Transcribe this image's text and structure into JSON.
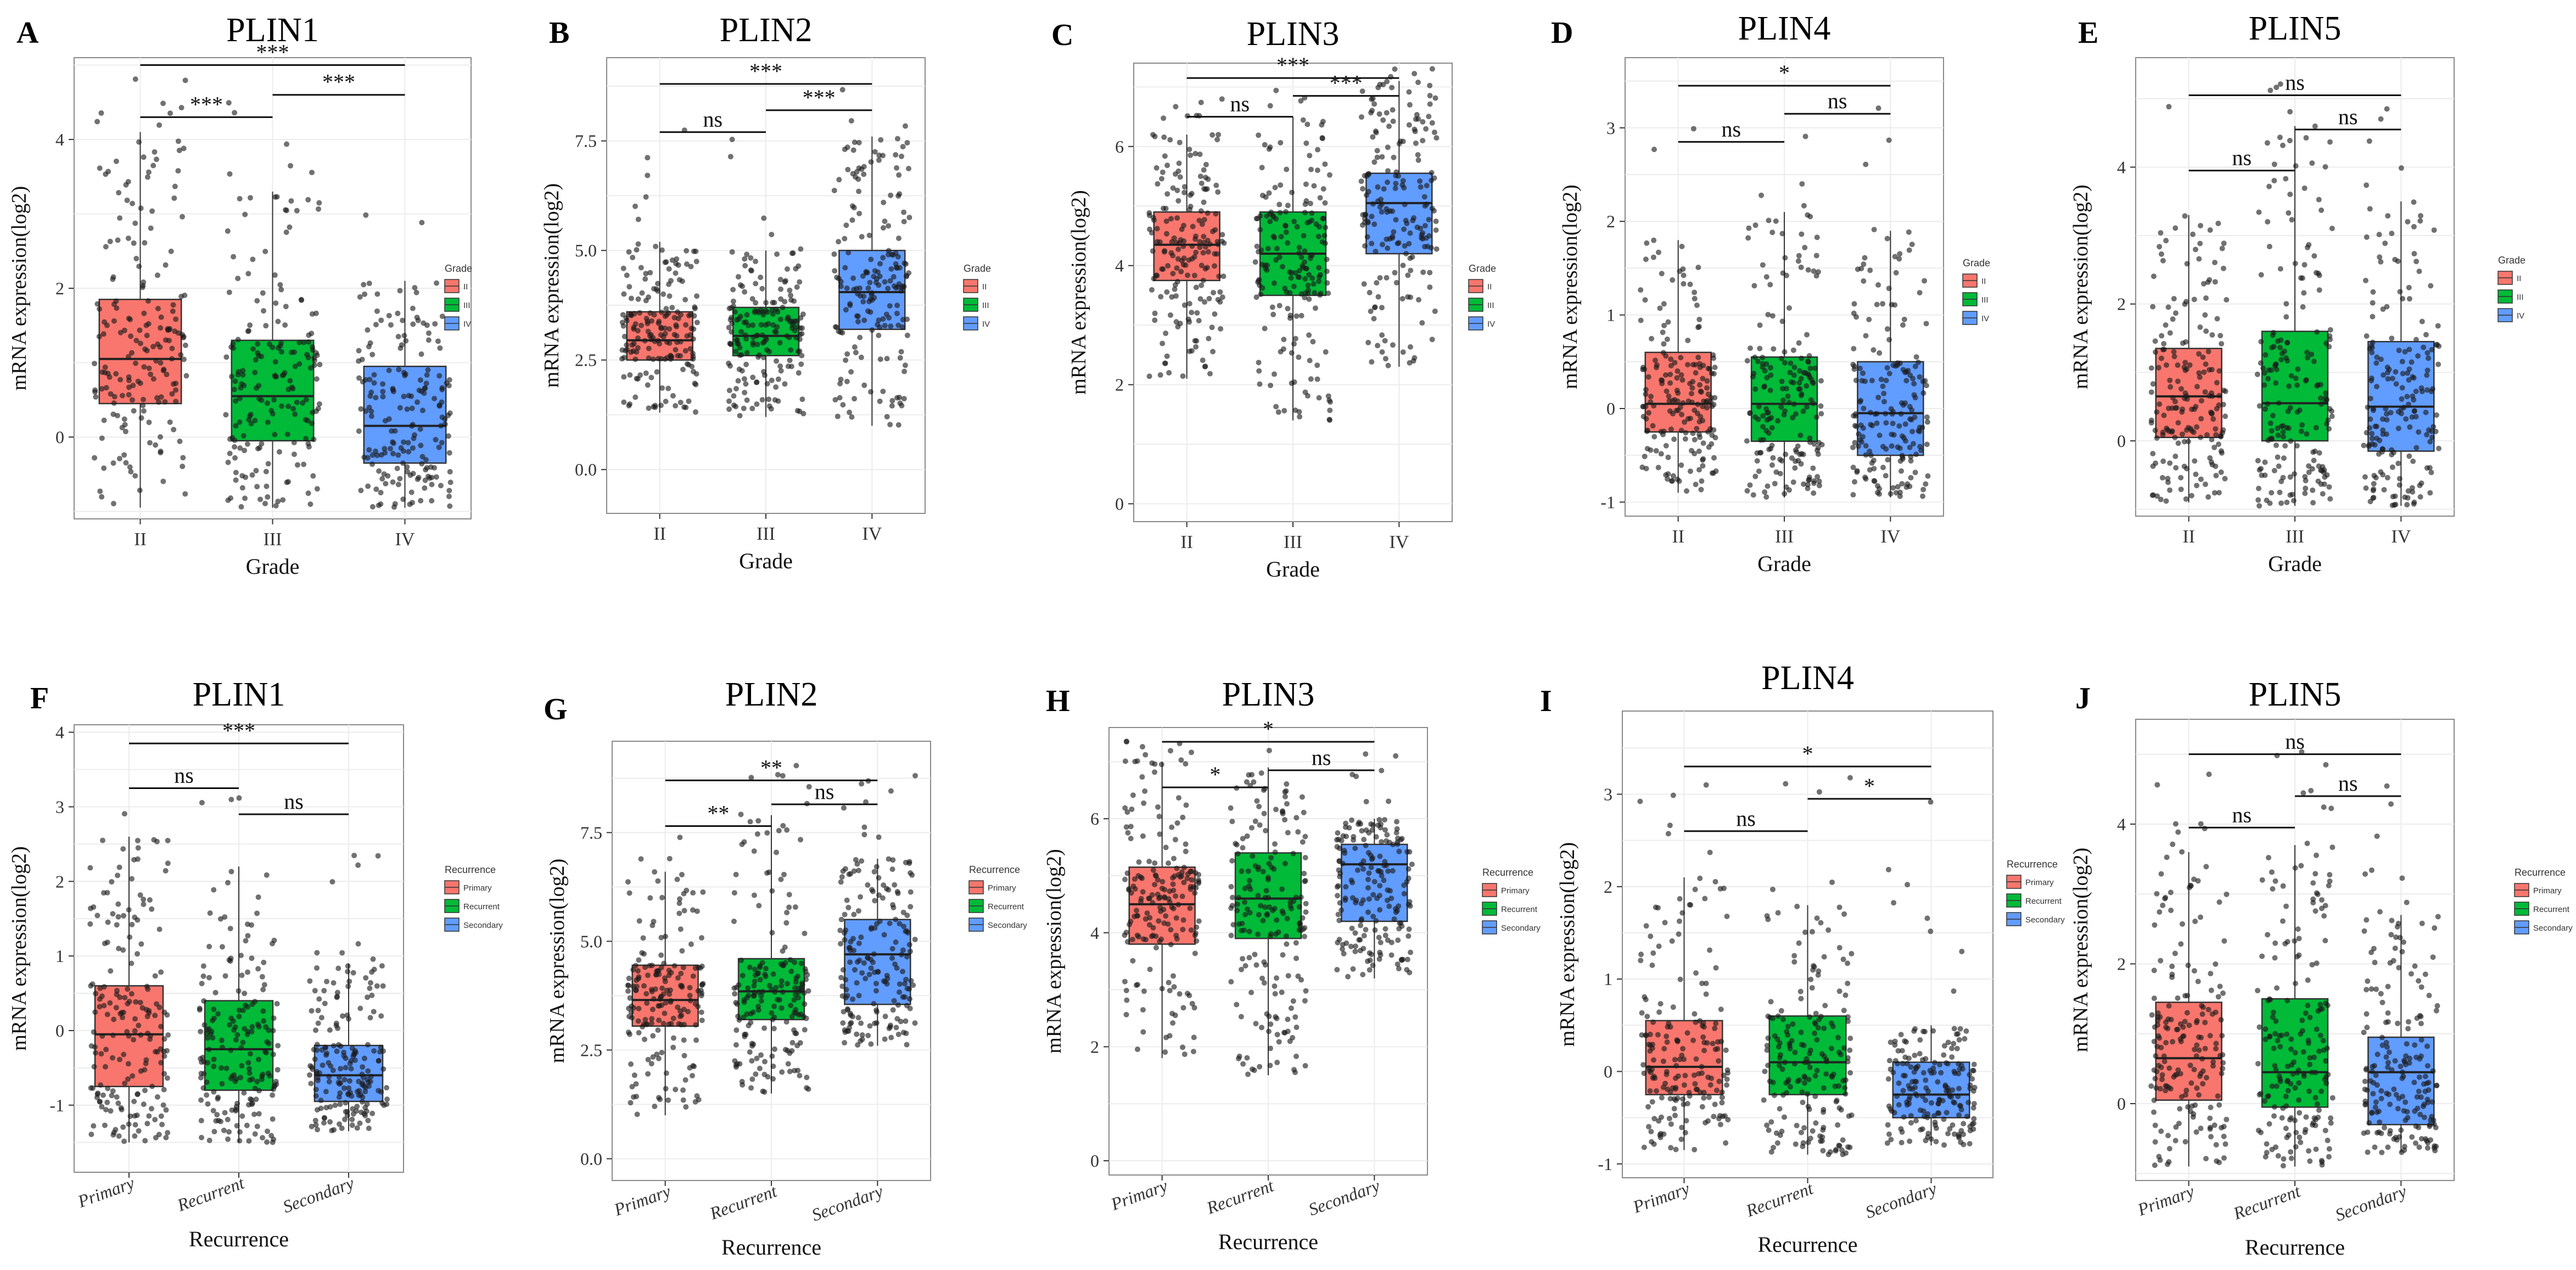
{
  "figure": {
    "colors": {
      "II": "#F8766D",
      "III": "#00BA38",
      "IV": "#619CFF",
      "Primary": "#F8766D",
      "Recurrent": "#00BA38",
      "Secondary": "#619CFF"
    },
    "y_axis_label": "mRNA expression(log2)"
  },
  "chart_data": [
    {
      "type": "box",
      "panel_label": "A",
      "title": "PLIN1",
      "xlabel": "Grade",
      "ylabel": "mRNA expression(log2)",
      "categories": [
        "II",
        "III",
        "IV"
      ],
      "box_stats": [
        {
          "q1": 0.45,
          "median": 1.05,
          "q3": 1.85,
          "low": -0.95,
          "high": 4.1
        },
        {
          "q1": -0.05,
          "median": 0.55,
          "q3": 1.3,
          "low": -0.95,
          "high": 3.3
        },
        {
          "q1": -0.35,
          "median": 0.15,
          "q3": 0.95,
          "low": -0.95,
          "high": 2.1
        }
      ],
      "yticks": [
        0,
        2,
        4
      ],
      "ylim": [
        -1.1,
        5.1
      ],
      "legend_title": "Grade",
      "legend": [
        "II",
        "III",
        "IV"
      ],
      "comparisons": [
        {
          "from": 0,
          "to": 2,
          "y": 5.0,
          "label": "***"
        },
        {
          "from": 0,
          "to": 1,
          "y": 4.3,
          "label": "***"
        },
        {
          "from": 1,
          "to": 2,
          "y": 4.6,
          "label": "***"
        }
      ]
    },
    {
      "type": "box",
      "panel_label": "B",
      "title": "PLIN2",
      "xlabel": "Grade",
      "ylabel": "mRNA expression(log2)",
      "categories": [
        "II",
        "III",
        "IV"
      ],
      "box_stats": [
        {
          "q1": 2.5,
          "median": 2.95,
          "q3": 3.6,
          "low": 1.3,
          "high": 5.2
        },
        {
          "q1": 2.6,
          "median": 3.05,
          "q3": 3.7,
          "low": 1.2,
          "high": 5.0
        },
        {
          "q1": 3.2,
          "median": 4.05,
          "q3": 5.0,
          "low": 1.0,
          "high": 7.6
        }
      ],
      "yticks": [
        0,
        2.5,
        5.0,
        7.5
      ],
      "ylim": [
        -1.0,
        9.4
      ],
      "legend_title": "Grade",
      "legend": [
        "II",
        "III",
        "IV"
      ],
      "comparisons": [
        {
          "from": 0,
          "to": 2,
          "y": 8.8,
          "label": "***"
        },
        {
          "from": 0,
          "to": 1,
          "y": 7.7,
          "label": "ns"
        },
        {
          "from": 1,
          "to": 2,
          "y": 8.2,
          "label": "***"
        }
      ]
    },
    {
      "type": "box",
      "panel_label": "C",
      "title": "PLIN3",
      "xlabel": "Grade",
      "ylabel": "mRNA expression(log2)",
      "categories": [
        "II",
        "III",
        "IV"
      ],
      "box_stats": [
        {
          "q1": 3.75,
          "median": 4.35,
          "q3": 4.9,
          "low": 2.1,
          "high": 6.2
        },
        {
          "q1": 3.5,
          "median": 4.2,
          "q3": 4.9,
          "low": 1.4,
          "high": 6.5
        },
        {
          "q1": 4.2,
          "median": 5.05,
          "q3": 5.55,
          "low": 2.3,
          "high": 7.1
        }
      ],
      "yticks": [
        0,
        2,
        4,
        6
      ],
      "ylim": [
        -0.3,
        7.4
      ],
      "legend_title": "Grade",
      "legend": [
        "II",
        "III",
        "IV"
      ],
      "comparisons": [
        {
          "from": 0,
          "to": 2,
          "y": 7.15,
          "label": "***"
        },
        {
          "from": 0,
          "to": 1,
          "y": 6.5,
          "label": "ns"
        },
        {
          "from": 1,
          "to": 2,
          "y": 6.85,
          "label": "***"
        }
      ]
    },
    {
      "type": "box",
      "panel_label": "D",
      "title": "PLIN4",
      "xlabel": "Grade",
      "ylabel": "mRNA expression(log2)",
      "categories": [
        "II",
        "III",
        "IV"
      ],
      "box_stats": [
        {
          "q1": -0.25,
          "median": 0.05,
          "q3": 0.6,
          "low": -0.9,
          "high": 1.8
        },
        {
          "q1": -0.35,
          "median": 0.05,
          "q3": 0.55,
          "low": -0.95,
          "high": 2.1
        },
        {
          "q1": -0.5,
          "median": -0.05,
          "q3": 0.5,
          "low": -0.95,
          "high": 1.9
        }
      ],
      "yticks": [
        -1,
        0,
        1,
        2,
        3
      ],
      "ylim": [
        -1.15,
        3.75
      ],
      "legend_title": "Grade",
      "legend": [
        "II",
        "III",
        "IV"
      ],
      "comparisons": [
        {
          "from": 0,
          "to": 2,
          "y": 3.45,
          "label": "*"
        },
        {
          "from": 0,
          "to": 1,
          "y": 2.85,
          "label": "ns"
        },
        {
          "from": 1,
          "to": 2,
          "y": 3.15,
          "label": "ns"
        }
      ]
    },
    {
      "type": "box",
      "panel_label": "E",
      "title": "PLIN5",
      "xlabel": "Grade",
      "ylabel": "mRNA expression(log2)",
      "categories": [
        "II",
        "III",
        "IV"
      ],
      "box_stats": [
        {
          "q1": 0.05,
          "median": 0.65,
          "q3": 1.35,
          "low": -0.9,
          "high": 3.3
        },
        {
          "q1": 0.0,
          "median": 0.55,
          "q3": 1.6,
          "low": -0.95,
          "high": 4.6
        },
        {
          "q1": -0.15,
          "median": 0.5,
          "q3": 1.45,
          "low": -0.95,
          "high": 3.5
        }
      ],
      "yticks": [
        0,
        2,
        4
      ],
      "ylim": [
        -1.1,
        5.6
      ],
      "legend_title": "Grade",
      "legend": [
        "II",
        "III",
        "IV"
      ],
      "comparisons": [
        {
          "from": 0,
          "to": 2,
          "y": 5.05,
          "label": "ns"
        },
        {
          "from": 0,
          "to": 1,
          "y": 3.95,
          "label": "ns"
        },
        {
          "from": 1,
          "to": 2,
          "y": 4.55,
          "label": "ns"
        }
      ]
    },
    {
      "type": "box",
      "panel_label": "F",
      "title": "PLIN1",
      "xlabel": "Recurrence",
      "ylabel": "mRNA expression(log2)",
      "categories": [
        "Primary",
        "Recurrent",
        "Secondary"
      ],
      "box_stats": [
        {
          "q1": -0.75,
          "median": -0.05,
          "q3": 0.6,
          "low": -1.5,
          "high": 2.6
        },
        {
          "q1": -0.8,
          "median": -0.25,
          "q3": 0.4,
          "low": -1.5,
          "high": 2.2
        },
        {
          "q1": -0.95,
          "median": -0.6,
          "q3": -0.2,
          "low": -1.35,
          "high": 0.9
        }
      ],
      "yticks": [
        -1,
        0,
        1,
        2,
        3,
        4
      ],
      "ylim": [
        -1.9,
        4.1
      ],
      "legend_title": "Recurrence",
      "legend": [
        "Primary",
        "Recurrent",
        "Secondary"
      ],
      "comparisons": [
        {
          "from": 0,
          "to": 2,
          "y": 3.85,
          "label": "***"
        },
        {
          "from": 0,
          "to": 1,
          "y": 3.25,
          "label": "ns"
        },
        {
          "from": 1,
          "to": 2,
          "y": 2.9,
          "label": "ns"
        }
      ]
    },
    {
      "type": "box",
      "panel_label": "G",
      "title": "PLIN2",
      "xlabel": "Recurrence",
      "ylabel": "mRNA expression(log2)",
      "categories": [
        "Primary",
        "Recurrent",
        "Secondary"
      ],
      "box_stats": [
        {
          "q1": 3.05,
          "median": 3.65,
          "q3": 4.45,
          "low": 1.0,
          "high": 6.6
        },
        {
          "q1": 3.2,
          "median": 3.85,
          "q3": 4.6,
          "low": 1.5,
          "high": 7.9
        },
        {
          "q1": 3.55,
          "median": 4.7,
          "q3": 5.5,
          "low": 2.6,
          "high": 6.9
        }
      ],
      "yticks": [
        0,
        2.5,
        5.0,
        7.5
      ],
      "ylim": [
        -0.5,
        9.6
      ],
      "legend_title": "Recurrence",
      "legend": [
        "Primary",
        "Recurrent",
        "Secondary"
      ],
      "comparisons": [
        {
          "from": 0,
          "to": 2,
          "y": 8.7,
          "label": "**"
        },
        {
          "from": 0,
          "to": 1,
          "y": 7.65,
          "label": "**"
        },
        {
          "from": 1,
          "to": 2,
          "y": 8.15,
          "label": "ns"
        }
      ]
    },
    {
      "type": "box",
      "panel_label": "H",
      "title": "PLIN3",
      "xlabel": "Recurrence",
      "ylabel": "mRNA expression(log2)",
      "categories": [
        "Primary",
        "Recurrent",
        "Secondary"
      ],
      "box_stats": [
        {
          "q1": 3.8,
          "median": 4.5,
          "q3": 5.15,
          "low": 1.8,
          "high": 7.0
        },
        {
          "q1": 3.9,
          "median": 4.6,
          "q3": 5.4,
          "low": 1.5,
          "high": 6.9
        },
        {
          "q1": 4.2,
          "median": 5.2,
          "q3": 5.55,
          "low": 3.2,
          "high": 6.0
        }
      ],
      "yticks": [
        0,
        2,
        4,
        6
      ],
      "ylim": [
        -0.25,
        7.6
      ],
      "legend_title": "Recurrence",
      "legend": [
        "Primary",
        "Recurrent",
        "Secondary"
      ],
      "comparisons": [
        {
          "from": 0,
          "to": 2,
          "y": 7.35,
          "label": "*"
        },
        {
          "from": 0,
          "to": 1,
          "y": 6.55,
          "label": "*"
        },
        {
          "from": 1,
          "to": 2,
          "y": 6.85,
          "label": "ns"
        }
      ]
    },
    {
      "type": "box",
      "panel_label": "I",
      "title": "PLIN4",
      "xlabel": "Recurrence",
      "ylabel": "mRNA expression(log2)",
      "categories": [
        "Primary",
        "Recurrent",
        "Secondary"
      ],
      "box_stats": [
        {
          "q1": -0.25,
          "median": 0.05,
          "q3": 0.55,
          "low": -0.85,
          "high": 2.1
        },
        {
          "q1": -0.25,
          "median": 0.1,
          "q3": 0.6,
          "low": -0.9,
          "high": 1.8
        },
        {
          "q1": -0.5,
          "median": -0.25,
          "q3": 0.1,
          "low": -0.8,
          "high": 0.5
        }
      ],
      "yticks": [
        -1,
        0,
        1,
        2,
        3
      ],
      "ylim": [
        -1.15,
        3.9
      ],
      "legend_title": "Recurrence",
      "legend": [
        "Primary",
        "Recurrent",
        "Secondary"
      ],
      "comparisons": [
        {
          "from": 0,
          "to": 2,
          "y": 3.3,
          "label": "*"
        },
        {
          "from": 0,
          "to": 1,
          "y": 2.6,
          "label": "ns"
        },
        {
          "from": 1,
          "to": 2,
          "y": 2.95,
          "label": "*"
        }
      ]
    },
    {
      "type": "box",
      "panel_label": "J",
      "title": "PLIN5",
      "xlabel": "Recurrence",
      "ylabel": "mRNA expression(log2)",
      "categories": [
        "Primary",
        "Recurrent",
        "Secondary"
      ],
      "box_stats": [
        {
          "q1": 0.05,
          "median": 0.65,
          "q3": 1.45,
          "low": -0.9,
          "high": 3.6
        },
        {
          "q1": -0.05,
          "median": 0.45,
          "q3": 1.5,
          "low": -0.9,
          "high": 3.7
        },
        {
          "q1": -0.3,
          "median": 0.45,
          "q3": 0.95,
          "low": -0.7,
          "high": 2.7
        }
      ],
      "yticks": [
        0,
        2,
        4
      ],
      "ylim": [
        -1.1,
        5.5
      ],
      "legend_title": "Recurrence",
      "legend": [
        "Primary",
        "Recurrent",
        "Secondary"
      ],
      "comparisons": [
        {
          "from": 0,
          "to": 2,
          "y": 5.0,
          "label": "ns"
        },
        {
          "from": 0,
          "to": 1,
          "y": 3.95,
          "label": "ns"
        },
        {
          "from": 1,
          "to": 2,
          "y": 4.4,
          "label": "ns"
        }
      ]
    }
  ]
}
